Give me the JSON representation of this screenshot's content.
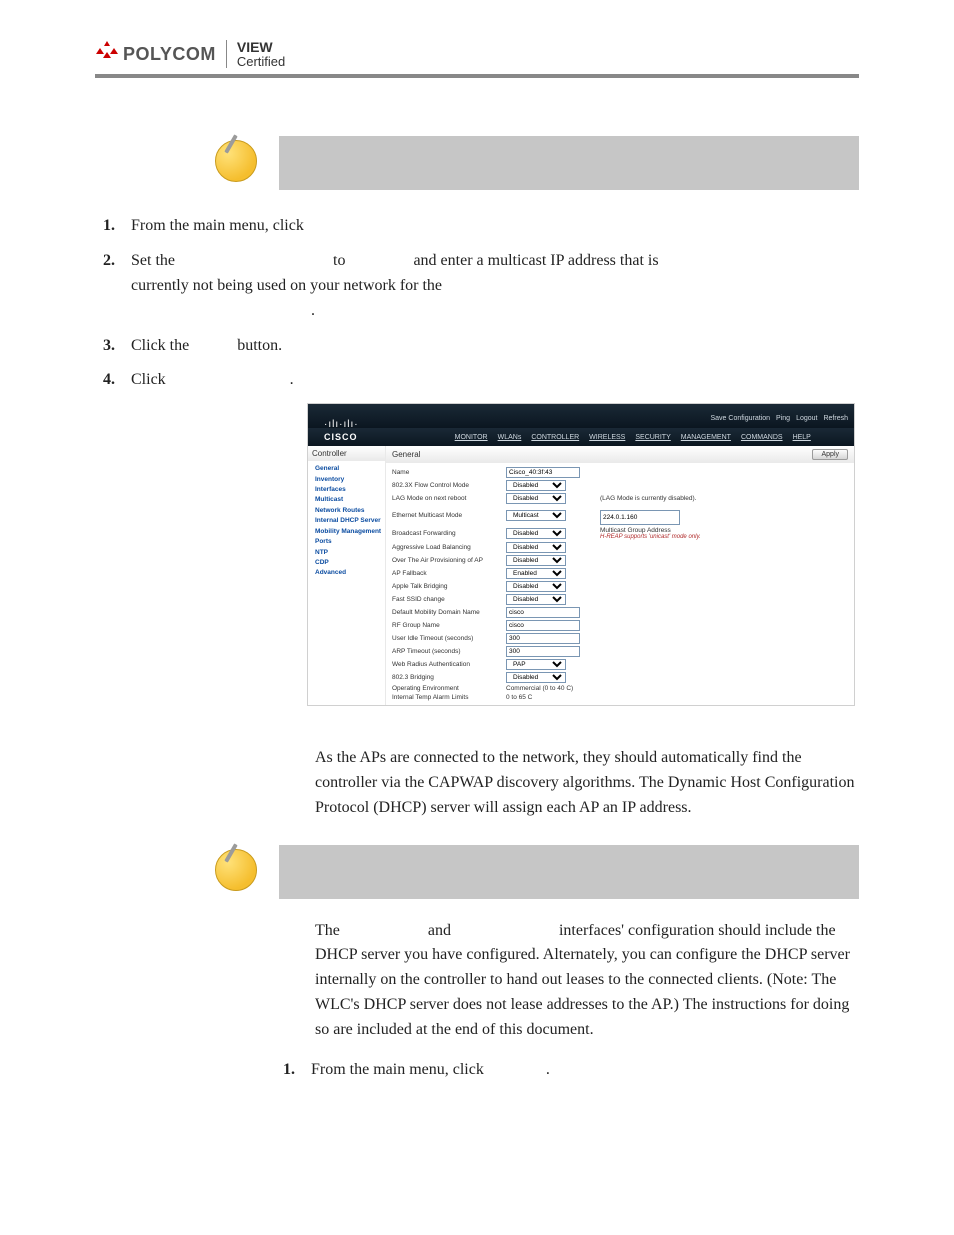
{
  "header": {
    "brand_word": "POLYCOM",
    "tag_line1": "VIEW",
    "tag_line2": "Certified"
  },
  "note1": {
    "body": ""
  },
  "steps_a": [
    {
      "num": "1.",
      "text_before": "From the main menu, click",
      "text_after": ""
    },
    {
      "num": "2.",
      "text_before": "Set the",
      "text_mid": "to",
      "text_mid2": "and enter a multicast IP address that is currently not being used on your network for the",
      "text_after": "."
    },
    {
      "num": "3.",
      "text_before": "Click the",
      "text_after": "button."
    },
    {
      "num": "4.",
      "text_before": "Click",
      "text_after": "."
    }
  ],
  "screenshot": {
    "top_links": [
      "Save Configuration",
      "Ping",
      "Logout",
      "Refresh"
    ],
    "cisco_bars": "·ılı·ılı·",
    "cisco_word": "CISCO",
    "nav": [
      "MONITOR",
      "WLANs",
      "CONTROLLER",
      "WIRELESS",
      "SECURITY",
      "MANAGEMENT",
      "COMMANDS",
      "HELP"
    ],
    "side_title": "Controller",
    "side_links": [
      "General",
      "Inventory",
      "Interfaces",
      "Multicast",
      "Network Routes",
      "Internal DHCP Server",
      "Mobility Management",
      "Ports",
      "NTP",
      "CDP",
      "Advanced"
    ],
    "main_head": "General",
    "apply_label": "Apply",
    "rows": [
      {
        "label": "Name",
        "type": "input",
        "value": "Cisco_40:3f:43"
      },
      {
        "label": "802.3X Flow Control Mode",
        "type": "select",
        "value": "Disabled"
      },
      {
        "label": "LAG Mode on next reboot",
        "type": "select",
        "value": "Disabled",
        "note": "(LAG Mode is currently disabled)."
      },
      {
        "label": "Ethernet Multicast Mode",
        "type": "select",
        "value": "Multicast",
        "note": "224.0.1.160",
        "note_type": "input"
      },
      {
        "label": "Broadcast Forwarding",
        "type": "select",
        "value": "Disabled",
        "note": "Multicast Group Address",
        "note2": "H-REAP supports 'unicast' mode only."
      },
      {
        "label": "Aggressive Load Balancing",
        "type": "select",
        "value": "Disabled"
      },
      {
        "label": "Over The Air Provisioning of AP",
        "type": "select",
        "value": "Disabled"
      },
      {
        "label": "AP Fallback",
        "type": "select",
        "value": "Enabled"
      },
      {
        "label": "Apple Talk Bridging",
        "type": "select",
        "value": "Disabled"
      },
      {
        "label": "Fast SSID change",
        "type": "select",
        "value": "Disabled"
      },
      {
        "label": "Default Mobility Domain Name",
        "type": "input",
        "value": "cisco"
      },
      {
        "label": "RF Group Name",
        "type": "input",
        "value": "cisco"
      },
      {
        "label": "User Idle Timeout (seconds)",
        "type": "input",
        "value": "300"
      },
      {
        "label": "ARP Timeout (seconds)",
        "type": "input",
        "value": "300"
      },
      {
        "label": "Web Radius Authentication",
        "type": "select",
        "value": "PAP"
      },
      {
        "label": "802.3 Bridging",
        "type": "select",
        "value": "Disabled"
      },
      {
        "label": "Operating Environment",
        "type": "text",
        "value": "Commercial (0 to 40 C)"
      },
      {
        "label": "Internal Temp Alarm Limits",
        "type": "text",
        "value": "0 to 65 C"
      }
    ]
  },
  "para1": "As the APs are connected to the network, they should automatically find the controller via the CAPWAP discovery algorithms. The Dynamic Host Configuration Protocol (DHCP) server will assign each AP an IP address.",
  "note2": {
    "body": ""
  },
  "para2_a": "The",
  "para2_b": "and",
  "para2_c": "interfaces' configuration should include the DHCP server you have configured. Alternately, you can configure the DHCP server internally on the controller to hand out leases to the connected clients. (Note: The WLC's DHCP server does not lease addresses to the AP.) The instructions for doing so are included at the end of this document.",
  "steps_b": [
    {
      "num": "1.",
      "text_before": "From the main menu, click",
      "text_after": "."
    }
  ]
}
